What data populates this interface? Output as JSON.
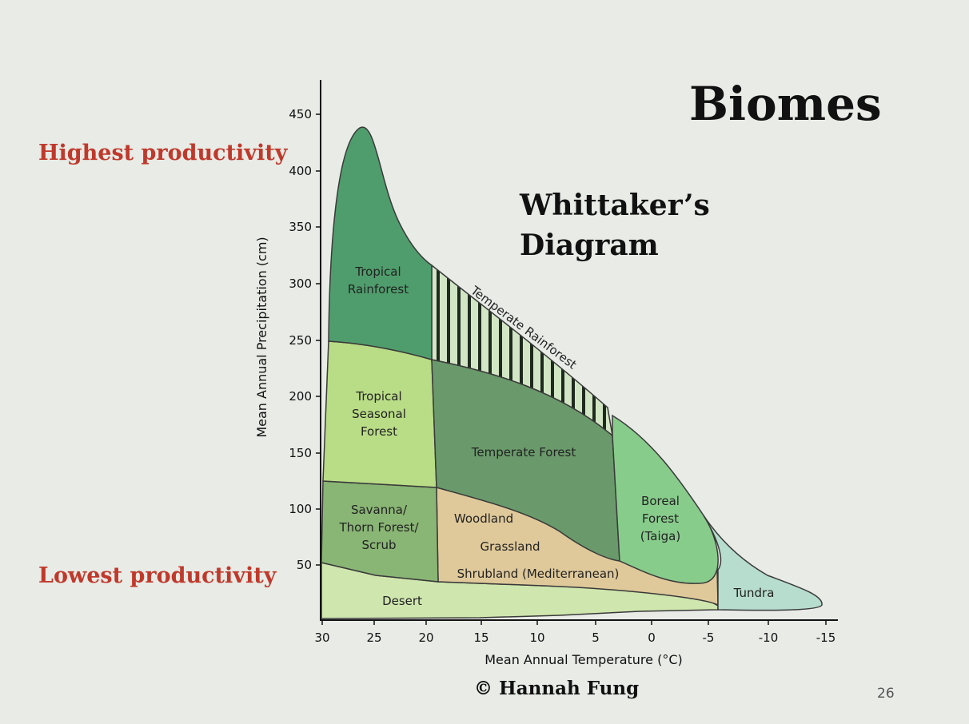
{
  "slide": {
    "title": "Biomes",
    "subtitle_line1": "Whittaker’s",
    "subtitle_line2": "Diagram",
    "highest_label": "Highest productivity",
    "lowest_label": "Lowest productivity",
    "credit": "© Hannah Fung",
    "page_number": "26"
  },
  "diagram": {
    "x_axis": {
      "title": "Mean Annual Temperature (°C)",
      "ticks": [
        "30",
        "25",
        "20",
        "15",
        "10",
        "5",
        "0",
        "-5",
        "-10",
        "-15"
      ]
    },
    "y_axis": {
      "title": "Mean Annual Precipitation (cm)",
      "ticks": [
        "50",
        "100",
        "150",
        "200",
        "250",
        "300",
        "350",
        "400",
        "450"
      ]
    },
    "biomes": {
      "tropical_rainforest": [
        "Tropical",
        "Rainforest"
      ],
      "temperate_rainforest": "Temperate Rainforest",
      "tropical_seasonal_forest": [
        "Tropical",
        "Seasonal",
        "Forest"
      ],
      "temperate_forest": "Temperate Forest",
      "savanna": [
        "Savanna/",
        "Thorn Forest/",
        "Scrub"
      ],
      "woodland": "Woodland",
      "grassland": "Grassland",
      "shrubland": "Shrubland (Mediterranean)",
      "boreal_forest": [
        "Boreal",
        "Forest",
        "(Taiga)"
      ],
      "desert": "Desert",
      "tundra": "Tundra"
    },
    "colors": {
      "tropical_rainforest": "#4f9d6c",
      "temperate_rainforest": "#d2e6c5",
      "tropical_seasonal_forest": "#b9dc86",
      "temperate_forest": "#6a9a6b",
      "savanna": "#89b575",
      "woodland_shrubland": "#dfc99a",
      "boreal_forest": "#88cc8c",
      "desert": "#cfe6ae",
      "tundra": "#b7ddcf"
    }
  }
}
